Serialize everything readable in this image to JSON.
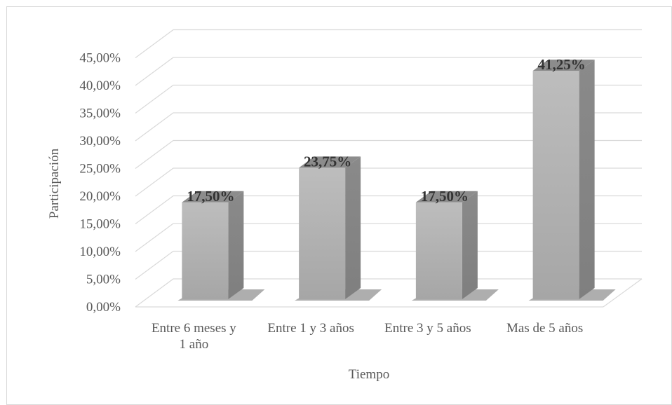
{
  "chart_data": {
    "type": "bar",
    "style": "3d-column",
    "categories": [
      "Entre 6 meses y 1 año",
      "Entre 1 y 3 años",
      "Entre 3 y 5 años",
      "Mas de 5 años"
    ],
    "category_lines": [
      [
        "Entre 6 meses y",
        "1 año"
      ],
      [
        "Entre 1 y 3 años"
      ],
      [
        "Entre 3 y 5 años"
      ],
      [
        "Mas de 5 años"
      ]
    ],
    "values": [
      17.5,
      23.75,
      17.5,
      41.25
    ],
    "data_labels": [
      "17,50%",
      "23,75%",
      "17,50%",
      "41,25%"
    ],
    "y_ticks": [
      "0,00%",
      "5,00%",
      "10,00%",
      "15,00%",
      "20,00%",
      "25,00%",
      "30,00%",
      "35,00%",
      "40,00%",
      "45,00%"
    ],
    "ylim": [
      0,
      45
    ],
    "xlabel": "Tiempo",
    "ylabel": "Participación",
    "grid": true,
    "legend": "none",
    "colors": {
      "bar_front": "#a6a6a6",
      "bar_side": "#7f7f7f",
      "bar_top": "#8c8c8c",
      "grid": "#d9d9d9",
      "text": "#595959"
    }
  }
}
